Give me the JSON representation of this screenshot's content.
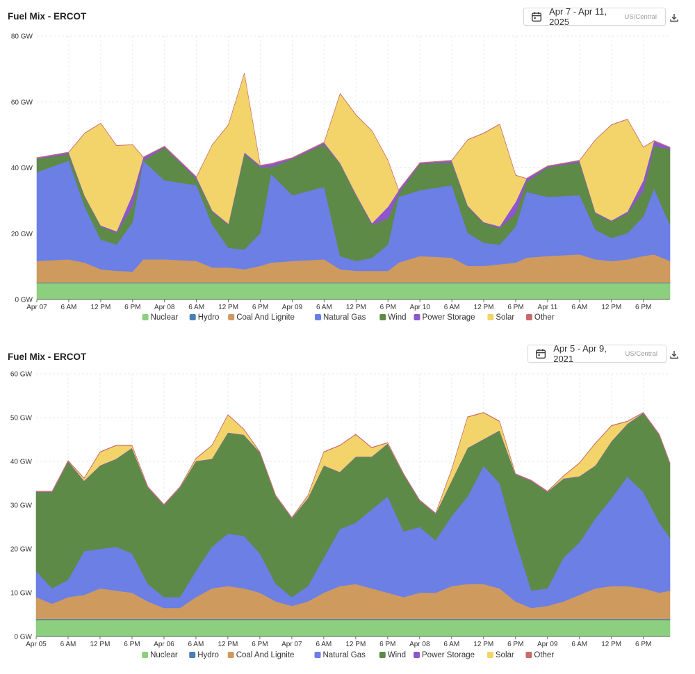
{
  "charts": [
    {
      "title": "Fuel Mix - ERCOT",
      "date_range": "Apr 7 - Apr 11, 2025",
      "timezone": "US/Central",
      "calendar_icon": "calendar-icon",
      "download_icon": "download-icon"
    },
    {
      "title": "Fuel Mix - ERCOT",
      "date_range": "Apr 5 - Apr 9, 2021",
      "timezone": "US/Central",
      "calendar_icon": "calendar-icon",
      "download_icon": "download-icon"
    }
  ],
  "chart_data": [
    {
      "type": "area",
      "stacked": true,
      "title": "Fuel Mix - ERCOT",
      "ylim": [
        0,
        80
      ],
      "y_ticks": [
        "0 GW",
        "20 GW",
        "40 GW",
        "60 GW",
        "80 GW"
      ],
      "x_range_hours": [
        0,
        119
      ],
      "x_ticks": [
        "Apr 07",
        "6 AM",
        "12 PM",
        "6 PM",
        "Apr 08",
        "6 AM",
        "12 PM",
        "6 PM",
        "Apr 09",
        "6 AM",
        "12 PM",
        "6 PM",
        "Apr 10",
        "6 AM",
        "12 PM",
        "6 PM",
        "Apr 11",
        "6 AM",
        "12 PM",
        "6 PM"
      ],
      "grid": true,
      "legend_position": "bottom",
      "x_hours": [
        0,
        6,
        9,
        12,
        15,
        18,
        20,
        24,
        30,
        33,
        36,
        39,
        42,
        44,
        48,
        54,
        57,
        60,
        63,
        66,
        68,
        72,
        78,
        81,
        84,
        87,
        90,
        92,
        96,
        102,
        105,
        108,
        111,
        114,
        116,
        119
      ],
      "series": [
        {
          "name": "Nuclear",
          "color": "#8ccf7e",
          "values": [
            5,
            5,
            5,
            5,
            5,
            5,
            5,
            5,
            5,
            5,
            5,
            5,
            5,
            5,
            5,
            5,
            5,
            5,
            5,
            5,
            5,
            5,
            5,
            5,
            5,
            5,
            5,
            5,
            5,
            5,
            5,
            5,
            5,
            5,
            5,
            5
          ]
        },
        {
          "name": "Hydro",
          "color": "#4a7fb5",
          "values": [
            0.2,
            0.2,
            0.2,
            0.2,
            0.2,
            0.2,
            0.2,
            0.2,
            0.2,
            0.2,
            0.2,
            0.2,
            0.2,
            0.2,
            0.2,
            0.2,
            0.2,
            0.2,
            0.2,
            0.2,
            0.2,
            0.2,
            0.2,
            0.2,
            0.2,
            0.2,
            0.2,
            0.2,
            0.2,
            0.2,
            0.2,
            0.2,
            0.2,
            0.2,
            0.2,
            0.2
          ]
        },
        {
          "name": "Coal And Lignite",
          "color": "#cf9a5e",
          "values": [
            6.5,
            7,
            6,
            4,
            3.5,
            3.3,
            7,
            7,
            6.5,
            4.5,
            4.5,
            4,
            5,
            6,
            6.5,
            7,
            4,
            3.5,
            3.5,
            3.5,
            6,
            8,
            7.5,
            5,
            5,
            5.5,
            6,
            7.5,
            8,
            8.5,
            7,
            6.5,
            7,
            8,
            8.5,
            6.5
          ]
        },
        {
          "name": "Natural Gas",
          "color": "#6b7fe5",
          "values": [
            27,
            30,
            17,
            9,
            8,
            15,
            30,
            24,
            23,
            13,
            6,
            6,
            10,
            27,
            20,
            22,
            4,
            3,
            4,
            8,
            20,
            20,
            22,
            10,
            7,
            6,
            11,
            20,
            18,
            18,
            9,
            7,
            8,
            12,
            20,
            11
          ]
        },
        {
          "name": "Wind",
          "color": "#5e8a48",
          "values": [
            4,
            2,
            3,
            4,
            3.5,
            5,
            0,
            10,
            2,
            4,
            7,
            29,
            20,
            2,
            11,
            13,
            28,
            20,
            10,
            8,
            1,
            8,
            7,
            8,
            6,
            5,
            4,
            3,
            9,
            10,
            5,
            5,
            6,
            8,
            13,
            23
          ]
        },
        {
          "name": "Power Storage",
          "color": "#8d55cf",
          "values": [
            0.3,
            0.5,
            0.3,
            0.3,
            0.5,
            3.5,
            1,
            0.3,
            0.5,
            0.3,
            0.3,
            0.5,
            0.5,
            1,
            0.3,
            0.5,
            0.3,
            0.3,
            0.5,
            3.5,
            1,
            0.3,
            0.5,
            0.3,
            0.3,
            0.5,
            3.5,
            1,
            0.3,
            0.5,
            0.3,
            0.3,
            0.5,
            3,
            1.5,
            0.5
          ]
        },
        {
          "name": "Solar",
          "color": "#f2d46b",
          "values": [
            0,
            0,
            19,
            31,
            26,
            15,
            0,
            0,
            0,
            20,
            30,
            24,
            0,
            0,
            0,
            0,
            21,
            24,
            28,
            14,
            0,
            0,
            0,
            20,
            27,
            31,
            8,
            0,
            0,
            0,
            22,
            29,
            28,
            10,
            0,
            0
          ]
        },
        {
          "name": "Other",
          "color": "#c96b6b",
          "values": [
            0.1,
            0.1,
            0.1,
            0.1,
            0.1,
            0.1,
            0.1,
            0.1,
            0.1,
            0.1,
            0.1,
            0.1,
            0.1,
            0.1,
            0.1,
            0.1,
            0.1,
            0.1,
            0.1,
            0.1,
            0.1,
            0.1,
            0.1,
            0.1,
            0.1,
            0.1,
            0.1,
            0.1,
            0.1,
            0.1,
            0.1,
            0.1,
            0.1,
            0.1,
            0.1,
            0.1
          ]
        }
      ]
    },
    {
      "type": "area",
      "stacked": true,
      "title": "Fuel Mix - ERCOT",
      "ylim": [
        0,
        60
      ],
      "y_ticks": [
        "0 GW",
        "10 GW",
        "20 GW",
        "30 GW",
        "40 GW",
        "50 GW",
        "60 GW"
      ],
      "x_range_hours": [
        0,
        119
      ],
      "x_ticks": [
        "Apr 05",
        "6 AM",
        "12 PM",
        "6 PM",
        "Apr 06",
        "6 AM",
        "12 PM",
        "6 PM",
        "Apr 07",
        "6 AM",
        "12 PM",
        "6 PM",
        "Apr 08",
        "6 AM",
        "12 PM",
        "6 PM",
        "Apr 09",
        "6 AM",
        "12 PM",
        "6 PM"
      ],
      "grid": true,
      "legend_position": "bottom",
      "x_hours": [
        0,
        3,
        6,
        9,
        12,
        15,
        18,
        21,
        24,
        27,
        30,
        33,
        36,
        39,
        42,
        45,
        48,
        51,
        54,
        57,
        60,
        63,
        66,
        69,
        72,
        75,
        78,
        81,
        84,
        87,
        90,
        93,
        96,
        99,
        102,
        105,
        108,
        111,
        114,
        117,
        119
      ],
      "series": [
        {
          "name": "Nuclear",
          "color": "#8ccf7e",
          "values": [
            3.8,
            3.8,
            3.8,
            3.8,
            3.8,
            3.8,
            3.8,
            3.8,
            3.8,
            3.8,
            3.8,
            3.8,
            3.8,
            3.8,
            3.8,
            3.8,
            3.8,
            3.8,
            3.8,
            3.8,
            3.8,
            3.8,
            3.8,
            3.8,
            3.8,
            3.8,
            3.8,
            3.8,
            3.8,
            3.8,
            3.8,
            3.8,
            3.8,
            3.8,
            3.8,
            3.8,
            3.8,
            3.8,
            3.8,
            3.8,
            3.8
          ]
        },
        {
          "name": "Hydro",
          "color": "#4a7fb5",
          "values": [
            0.2,
            0.2,
            0.2,
            0.2,
            0.2,
            0.2,
            0.2,
            0.2,
            0.2,
            0.2,
            0.2,
            0.2,
            0.2,
            0.2,
            0.2,
            0.2,
            0.2,
            0.2,
            0.2,
            0.2,
            0.2,
            0.2,
            0.2,
            0.2,
            0.2,
            0.2,
            0.2,
            0.2,
            0.2,
            0.2,
            0.2,
            0.2,
            0.2,
            0.2,
            0.2,
            0.2,
            0.2,
            0.2,
            0.2,
            0.2,
            0.2
          ]
        },
        {
          "name": "Coal And Lignite",
          "color": "#cf9a5e",
          "values": [
            5,
            3.5,
            5,
            5.5,
            7,
            6.5,
            6,
            4,
            2.5,
            2.5,
            5,
            7,
            7.5,
            7,
            6,
            4,
            3,
            4,
            6,
            7.5,
            8,
            7,
            6,
            5,
            6,
            6,
            7.5,
            8,
            8,
            7,
            4,
            2.5,
            3,
            4,
            5.5,
            7,
            7.5,
            7.5,
            7,
            6,
            6.5
          ]
        },
        {
          "name": "Natural Gas",
          "color": "#6b7fe5",
          "values": [
            6,
            3.5,
            4,
            10,
            9,
            10,
            9,
            4,
            2.5,
            2.5,
            6,
            9.5,
            12,
            12,
            9,
            4,
            2,
            3.5,
            8,
            13,
            14,
            18,
            22,
            15,
            15,
            12,
            16,
            20,
            27,
            24,
            14,
            4,
            4,
            10,
            12,
            16,
            20,
            25,
            22,
            16,
            12
          ]
        },
        {
          "name": "Wind",
          "color": "#5e8a48",
          "values": [
            18,
            22,
            27,
            16,
            19,
            20,
            24,
            22,
            21,
            25,
            25,
            20,
            23,
            23,
            23,
            20,
            18,
            20,
            21,
            13,
            15,
            12,
            12,
            13,
            6,
            6,
            8,
            11,
            6,
            12,
            15,
            25,
            22,
            18,
            15,
            12,
            13,
            12,
            18,
            20,
            17
          ]
        },
        {
          "name": "Power Storage",
          "color": "#8d55cf",
          "values": [
            0.1,
            0.1,
            0.1,
            0.1,
            0.1,
            0.1,
            0.1,
            0.1,
            0.1,
            0.1,
            0.1,
            0.1,
            0.1,
            0.1,
            0.1,
            0.1,
            0.1,
            0.1,
            0.1,
            0.1,
            0.1,
            0.1,
            0.1,
            0.1,
            0.1,
            0.1,
            0.1,
            0.1,
            0.1,
            0.1,
            0.1,
            0.1,
            0.1,
            0.1,
            0.1,
            0.1,
            0.1,
            0.1,
            0.1,
            0.1,
            0.1
          ]
        },
        {
          "name": "Solar",
          "color": "#f2d46b",
          "values": [
            0,
            0,
            0,
            0.5,
            3,
            3,
            0.5,
            0,
            0,
            0,
            0.5,
            3,
            4,
            1.2,
            0,
            0,
            0,
            0.5,
            3,
            6,
            5,
            2,
            0.1,
            0,
            0,
            0,
            2.5,
            7,
            6,
            2,
            0,
            0,
            0,
            0.5,
            3,
            5,
            3.5,
            0.5,
            0,
            0,
            0
          ]
        },
        {
          "name": "Other",
          "color": "#c96b6b",
          "values": [
            0.1,
            0.1,
            0.1,
            0.1,
            0.1,
            0.1,
            0.1,
            0.1,
            0.1,
            0.1,
            0.1,
            0.1,
            0.1,
            0.1,
            0.1,
            0.1,
            0.1,
            0.1,
            0.1,
            0.1,
            0.1,
            0.1,
            0.1,
            0.1,
            0.1,
            0.1,
            0.1,
            0.1,
            0.1,
            0.1,
            0.1,
            0.1,
            0.1,
            0.1,
            0.1,
            0.1,
            0.1,
            0.1,
            0.1,
            0.1,
            0.1
          ]
        }
      ]
    }
  ]
}
